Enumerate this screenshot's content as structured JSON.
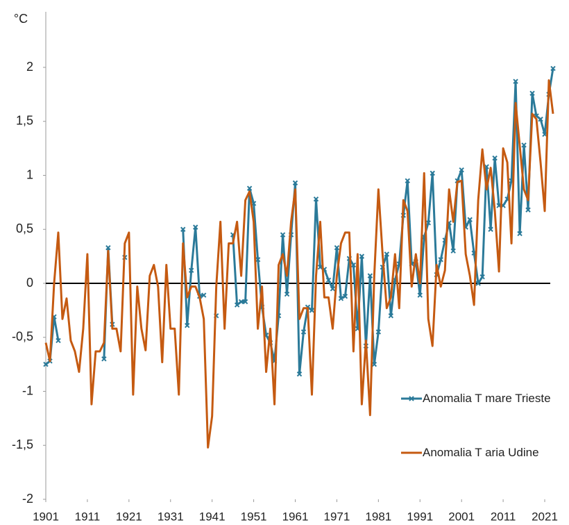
{
  "chart_data": {
    "type": "line",
    "y_label": "°C",
    "x": [
      1901,
      1902,
      1903,
      1904,
      1905,
      1906,
      1907,
      1908,
      1909,
      1910,
      1911,
      1912,
      1913,
      1914,
      1915,
      1916,
      1917,
      1918,
      1919,
      1920,
      1921,
      1922,
      1923,
      1924,
      1925,
      1926,
      1927,
      1928,
      1929,
      1930,
      1931,
      1932,
      1933,
      1934,
      1935,
      1936,
      1937,
      1938,
      1939,
      1940,
      1941,
      1942,
      1943,
      1944,
      1945,
      1946,
      1947,
      1948,
      1949,
      1950,
      1951,
      1952,
      1953,
      1954,
      1955,
      1956,
      1957,
      1958,
      1959,
      1960,
      1961,
      1962,
      1963,
      1964,
      1965,
      1966,
      1967,
      1968,
      1969,
      1970,
      1971,
      1972,
      1973,
      1974,
      1975,
      1976,
      1977,
      1978,
      1979,
      1980,
      1981,
      1982,
      1983,
      1984,
      1985,
      1986,
      1987,
      1988,
      1989,
      1990,
      1991,
      1992,
      1993,
      1994,
      1995,
      1996,
      1997,
      1998,
      1999,
      2000,
      2001,
      2002,
      2003,
      2004,
      2005,
      2006,
      2007,
      2008,
      2009,
      2010,
      2011,
      2012,
      2013,
      2014,
      2015,
      2016,
      2017,
      2018,
      2019,
      2020,
      2021,
      2022,
      2023
    ],
    "series": [
      {
        "name": "Anomalia T mare Trieste",
        "color": "#2b7a99",
        "marker": "x",
        "values": [
          -0.75,
          -0.72,
          -0.31,
          -0.53,
          null,
          null,
          null,
          null,
          null,
          null,
          null,
          null,
          null,
          null,
          -0.7,
          0.33,
          -0.38,
          null,
          null,
          0.24,
          null,
          null,
          null,
          null,
          null,
          null,
          null,
          null,
          null,
          null,
          null,
          null,
          null,
          0.5,
          -0.39,
          0.12,
          0.52,
          -0.12,
          -0.11,
          null,
          null,
          -0.3,
          null,
          null,
          null,
          0.45,
          -0.2,
          -0.17,
          -0.17,
          0.88,
          0.74,
          0.22,
          -0.22,
          -0.48,
          -0.55,
          -0.72,
          -0.3,
          0.45,
          -0.1,
          0.45,
          0.93,
          -0.84,
          -0.45,
          -0.22,
          -0.25,
          0.78,
          0.15,
          0.13,
          0.03,
          -0.05,
          0.33,
          -0.14,
          -0.12,
          0.23,
          0.17,
          -0.42,
          0.25,
          -0.58,
          0.07,
          -0.75,
          -0.45,
          0.15,
          0.27,
          -0.3,
          0.03,
          0.18,
          0.63,
          0.95,
          0.18,
          0.2,
          -0.11,
          0.43,
          0.56,
          1.02,
          0.08,
          0.22,
          0.4,
          0.56,
          0.3,
          0.95,
          1.05,
          0.52,
          0.59,
          0.28,
          0.0,
          0.06,
          1.08,
          0.5,
          1.16,
          0.72,
          0.72,
          0.78,
          0.95,
          1.87,
          0.46,
          1.28,
          0.68,
          1.76,
          1.55,
          1.52,
          1.38,
          1.75,
          1.99
        ]
      },
      {
        "name": "Anomalia T aria Udine",
        "color": "#c55a11",
        "values": [
          -0.55,
          -0.72,
          0.0,
          0.47,
          -0.33,
          -0.14,
          -0.53,
          -0.63,
          -0.82,
          -0.42,
          0.27,
          -1.12,
          -0.63,
          -0.63,
          -0.55,
          0.3,
          -0.42,
          -0.42,
          -0.63,
          0.37,
          0.47,
          -1.03,
          -0.03,
          -0.42,
          -0.62,
          0.07,
          0.17,
          -0.03,
          -0.73,
          0.17,
          -0.42,
          -0.42,
          -1.03,
          0.37,
          -0.13,
          -0.03,
          -0.03,
          -0.13,
          -0.33,
          -1.52,
          -1.23,
          -0.03,
          0.57,
          -0.42,
          0.37,
          0.37,
          0.57,
          0.07,
          0.77,
          0.85,
          0.57,
          -0.42,
          -0.03,
          -0.82,
          -0.42,
          -1.12,
          0.17,
          0.27,
          0.07,
          0.57,
          0.87,
          -0.33,
          -0.23,
          -0.23,
          -1.03,
          0.07,
          0.57,
          -0.13,
          -0.13,
          -0.42,
          0.07,
          0.37,
          0.47,
          0.47,
          -0.63,
          0.27,
          -1.12,
          -0.53,
          -1.22,
          0.07,
          0.87,
          0.27,
          -0.23,
          -0.13,
          0.27,
          -0.23,
          0.77,
          0.67,
          -0.03,
          0.27,
          0.0,
          1.02,
          -0.33,
          -0.58,
          0.17,
          -0.03,
          0.12,
          0.87,
          0.57,
          0.94,
          0.95,
          0.27,
          0.07,
          -0.2,
          0.77,
          1.24,
          0.87,
          1.07,
          0.67,
          0.11,
          1.25,
          1.12,
          0.37,
          1.67,
          1.27,
          0.87,
          0.77,
          1.57,
          1.52,
          1.12,
          0.67,
          1.88,
          1.57
        ]
      }
    ],
    "xlim": [
      1901,
      2023
    ],
    "xticks": [
      1901,
      1911,
      1921,
      1931,
      1941,
      1951,
      1961,
      1971,
      1981,
      1991,
      2001,
      2011,
      2021
    ],
    "ylim": [
      -2,
      2
    ],
    "yticks": [
      -2,
      {
        "value": -1.5,
        "label": "-1,5"
      },
      -1,
      {
        "value": -0.5,
        "label": "-0,5"
      },
      0,
      {
        "value": 0.5,
        "label": "0,5"
      },
      1,
      {
        "value": 1.5,
        "label": "1,5"
      },
      2
    ],
    "legend": "lower right"
  }
}
